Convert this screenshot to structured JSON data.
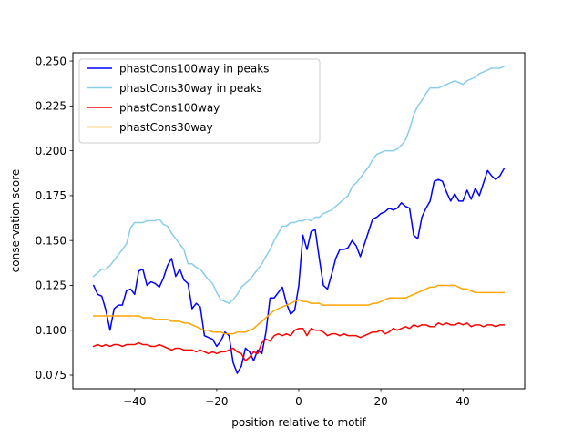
{
  "chart_data": {
    "type": "line",
    "title": "",
    "xlabel": "position relative to motif",
    "ylabel": "conservation score",
    "xlim": [
      -55.05,
      55.05
    ],
    "ylim": [
      0.0674,
      0.2546
    ],
    "xticks": [
      -40,
      -20,
      0,
      20,
      40
    ],
    "xtick_labels": [
      "−40",
      "−20",
      "0",
      "20",
      "40"
    ],
    "yticks": [
      0.075,
      0.1,
      0.125,
      0.15,
      0.175,
      0.2,
      0.225,
      0.25
    ],
    "ytick_labels": [
      "0.075",
      "0.100",
      "0.125",
      "0.150",
      "0.175",
      "0.200",
      "0.225",
      "0.250"
    ],
    "grid": false,
    "legend_position": "top-left",
    "series": [
      {
        "name": "phastCons100way in peaks",
        "color": "#0000ff",
        "x": [
          -50,
          -49,
          -48,
          -47,
          -46,
          -45,
          -44,
          -43,
          -42,
          -41,
          -40,
          -39,
          -38,
          -37,
          -36,
          -35,
          -34,
          -33,
          -32,
          -31,
          -30,
          -29,
          -28,
          -27,
          -26,
          -25,
          -24,
          -23,
          -22,
          -21,
          -20,
          -19,
          -18,
          -17,
          -16,
          -15,
          -14,
          -13,
          -12,
          -11,
          -10,
          -9,
          -8,
          -7,
          -6,
          -5,
          -4,
          -3,
          -2,
          -1,
          0,
          1,
          2,
          3,
          4,
          5,
          6,
          7,
          8,
          9,
          10,
          11,
          12,
          13,
          14,
          15,
          16,
          17,
          18,
          19,
          20,
          21,
          22,
          23,
          24,
          25,
          26,
          27,
          28,
          29,
          30,
          31,
          32,
          33,
          34,
          35,
          36,
          37,
          38,
          39,
          40,
          41,
          42,
          43,
          44,
          45,
          46,
          47,
          48,
          49,
          50
        ],
        "y": [
          0.125,
          0.12,
          0.119,
          0.111,
          0.1,
          0.112,
          0.114,
          0.114,
          0.122,
          0.123,
          0.12,
          0.133,
          0.134,
          0.125,
          0.127,
          0.126,
          0.124,
          0.129,
          0.136,
          0.14,
          0.13,
          0.134,
          0.128,
          0.126,
          0.112,
          0.115,
          0.113,
          0.097,
          0.096,
          0.095,
          0.091,
          0.094,
          0.099,
          0.097,
          0.082,
          0.076,
          0.08,
          0.09,
          0.088,
          0.083,
          0.089,
          0.087,
          0.099,
          0.118,
          0.118,
          0.121,
          0.124,
          0.115,
          0.109,
          0.111,
          0.125,
          0.153,
          0.145,
          0.155,
          0.156,
          0.14,
          0.125,
          0.123,
          0.131,
          0.14,
          0.145,
          0.145,
          0.146,
          0.15,
          0.147,
          0.141,
          0.148,
          0.155,
          0.162,
          0.163,
          0.165,
          0.166,
          0.168,
          0.167,
          0.168,
          0.171,
          0.169,
          0.168,
          0.153,
          0.151,
          0.163,
          0.168,
          0.172,
          0.183,
          0.184,
          0.183,
          0.177,
          0.172,
          0.176,
          0.172,
          0.172,
          0.178,
          0.173,
          0.179,
          0.175,
          0.182,
          0.189,
          0.186,
          0.184,
          0.186,
          0.19
        ]
      },
      {
        "name": "phastCons30way in peaks",
        "color": "#87ceeb",
        "x": [
          -50,
          -49,
          -48,
          -47,
          -46,
          -45,
          -44,
          -43,
          -42,
          -41,
          -40,
          -39,
          -38,
          -37,
          -36,
          -35,
          -34,
          -33,
          -32,
          -31,
          -30,
          -29,
          -28,
          -27,
          -26,
          -25,
          -24,
          -23,
          -22,
          -21,
          -20,
          -19,
          -18,
          -17,
          -16,
          -15,
          -14,
          -13,
          -12,
          -11,
          -10,
          -9,
          -8,
          -7,
          -6,
          -5,
          -4,
          -3,
          -2,
          -1,
          0,
          1,
          2,
          3,
          4,
          5,
          6,
          7,
          8,
          9,
          10,
          11,
          12,
          13,
          14,
          15,
          16,
          17,
          18,
          19,
          20,
          21,
          22,
          23,
          24,
          25,
          26,
          27,
          28,
          29,
          30,
          31,
          32,
          33,
          34,
          35,
          36,
          37,
          38,
          39,
          40,
          41,
          42,
          43,
          44,
          45,
          46,
          47,
          48,
          49,
          50
        ],
        "y": [
          0.13,
          0.132,
          0.134,
          0.134,
          0.136,
          0.139,
          0.142,
          0.145,
          0.148,
          0.157,
          0.16,
          0.16,
          0.16,
          0.161,
          0.161,
          0.161,
          0.162,
          0.159,
          0.158,
          0.154,
          0.151,
          0.148,
          0.145,
          0.137,
          0.137,
          0.135,
          0.134,
          0.131,
          0.128,
          0.126,
          0.121,
          0.117,
          0.116,
          0.115,
          0.117,
          0.12,
          0.124,
          0.126,
          0.128,
          0.131,
          0.134,
          0.137,
          0.141,
          0.145,
          0.15,
          0.154,
          0.158,
          0.158,
          0.16,
          0.16,
          0.161,
          0.161,
          0.162,
          0.161,
          0.163,
          0.163,
          0.165,
          0.166,
          0.167,
          0.169,
          0.171,
          0.173,
          0.175,
          0.18,
          0.182,
          0.185,
          0.188,
          0.191,
          0.195,
          0.198,
          0.199,
          0.2,
          0.2,
          0.2,
          0.201,
          0.203,
          0.206,
          0.212,
          0.22,
          0.225,
          0.228,
          0.232,
          0.235,
          0.235,
          0.235,
          0.236,
          0.237,
          0.238,
          0.239,
          0.238,
          0.237,
          0.239,
          0.24,
          0.241,
          0.243,
          0.244,
          0.245,
          0.246,
          0.246,
          0.246,
          0.247
        ]
      },
      {
        "name": "phastCons100way",
        "color": "#ff0000",
        "x": [
          -50,
          -49,
          -48,
          -47,
          -46,
          -45,
          -44,
          -43,
          -42,
          -41,
          -40,
          -39,
          -38,
          -37,
          -36,
          -35,
          -34,
          -33,
          -32,
          -31,
          -30,
          -29,
          -28,
          -27,
          -26,
          -25,
          -24,
          -23,
          -22,
          -21,
          -20,
          -19,
          -18,
          -17,
          -16,
          -15,
          -14,
          -13,
          -12,
          -11,
          -10,
          -9,
          -8,
          -7,
          -6,
          -5,
          -4,
          -3,
          -2,
          -1,
          0,
          1,
          2,
          3,
          4,
          5,
          6,
          7,
          8,
          9,
          10,
          11,
          12,
          13,
          14,
          15,
          16,
          17,
          18,
          19,
          20,
          21,
          22,
          23,
          24,
          25,
          26,
          27,
          28,
          29,
          30,
          31,
          32,
          33,
          34,
          35,
          36,
          37,
          38,
          39,
          40,
          41,
          42,
          43,
          44,
          45,
          46,
          47,
          48,
          49,
          50
        ],
        "y": [
          0.091,
          0.092,
          0.091,
          0.092,
          0.091,
          0.092,
          0.092,
          0.091,
          0.092,
          0.092,
          0.092,
          0.093,
          0.092,
          0.092,
          0.091,
          0.091,
          0.092,
          0.091,
          0.09,
          0.089,
          0.09,
          0.09,
          0.089,
          0.089,
          0.089,
          0.088,
          0.089,
          0.088,
          0.087,
          0.088,
          0.087,
          0.088,
          0.088,
          0.089,
          0.09,
          0.088,
          0.087,
          0.083,
          0.085,
          0.088,
          0.087,
          0.093,
          0.095,
          0.094,
          0.097,
          0.098,
          0.097,
          0.098,
          0.097,
          0.1,
          0.101,
          0.101,
          0.097,
          0.101,
          0.1,
          0.1,
          0.099,
          0.097,
          0.098,
          0.098,
          0.097,
          0.098,
          0.097,
          0.097,
          0.097,
          0.096,
          0.097,
          0.098,
          0.099,
          0.099,
          0.1,
          0.098,
          0.099,
          0.101,
          0.1,
          0.101,
          0.102,
          0.101,
          0.103,
          0.102,
          0.103,
          0.103,
          0.102,
          0.102,
          0.104,
          0.103,
          0.104,
          0.103,
          0.103,
          0.104,
          0.103,
          0.104,
          0.102,
          0.103,
          0.103,
          0.102,
          0.103,
          0.103,
          0.102,
          0.103,
          0.103
        ]
      },
      {
        "name": "phastCons30way",
        "color": "#ffa500",
        "x": [
          -50,
          -49,
          -48,
          -47,
          -46,
          -45,
          -44,
          -43,
          -42,
          -41,
          -40,
          -39,
          -38,
          -37,
          -36,
          -35,
          -34,
          -33,
          -32,
          -31,
          -30,
          -29,
          -28,
          -27,
          -26,
          -25,
          -24,
          -23,
          -22,
          -21,
          -20,
          -19,
          -18,
          -17,
          -16,
          -15,
          -14,
          -13,
          -12,
          -11,
          -10,
          -9,
          -8,
          -7,
          -6,
          -5,
          -4,
          -3,
          -2,
          -1,
          0,
          1,
          2,
          3,
          4,
          5,
          6,
          7,
          8,
          9,
          10,
          11,
          12,
          13,
          14,
          15,
          16,
          17,
          18,
          19,
          20,
          21,
          22,
          23,
          24,
          25,
          26,
          27,
          28,
          29,
          30,
          31,
          32,
          33,
          34,
          35,
          36,
          37,
          38,
          39,
          40,
          41,
          42,
          43,
          44,
          45,
          46,
          47,
          48,
          49,
          50
        ],
        "y": [
          0.108,
          0.108,
          0.108,
          0.108,
          0.108,
          0.108,
          0.108,
          0.108,
          0.108,
          0.108,
          0.108,
          0.108,
          0.107,
          0.107,
          0.107,
          0.106,
          0.106,
          0.106,
          0.106,
          0.105,
          0.105,
          0.105,
          0.104,
          0.104,
          0.103,
          0.102,
          0.101,
          0.1,
          0.1,
          0.099,
          0.099,
          0.099,
          0.098,
          0.098,
          0.098,
          0.099,
          0.099,
          0.099,
          0.1,
          0.101,
          0.103,
          0.105,
          0.107,
          0.109,
          0.111,
          0.112,
          0.113,
          0.114,
          0.115,
          0.116,
          0.117,
          0.116,
          0.116,
          0.115,
          0.115,
          0.115,
          0.114,
          0.114,
          0.114,
          0.114,
          0.114,
          0.114,
          0.114,
          0.114,
          0.114,
          0.114,
          0.114,
          0.114,
          0.115,
          0.115,
          0.116,
          0.117,
          0.118,
          0.118,
          0.118,
          0.118,
          0.118,
          0.119,
          0.12,
          0.121,
          0.122,
          0.123,
          0.124,
          0.124,
          0.125,
          0.125,
          0.125,
          0.125,
          0.125,
          0.124,
          0.123,
          0.123,
          0.122,
          0.121,
          0.121,
          0.121,
          0.121,
          0.121,
          0.121,
          0.121,
          0.121
        ]
      }
    ]
  }
}
